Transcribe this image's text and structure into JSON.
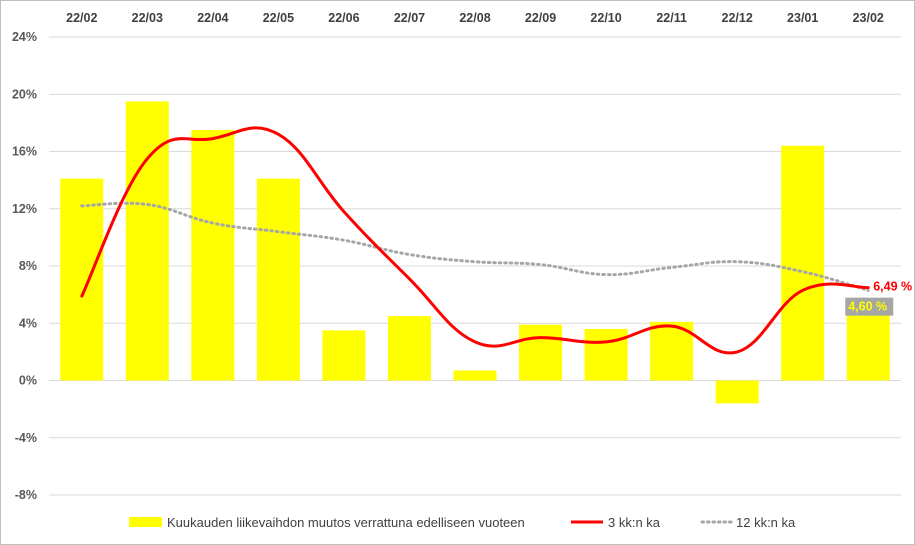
{
  "chart_data": {
    "type": "bar",
    "categories": [
      "22/02",
      "22/03",
      "22/04",
      "22/05",
      "22/06",
      "22/07",
      "22/08",
      "22/09",
      "22/10",
      "22/11",
      "22/12",
      "23/01",
      "23/02"
    ],
    "yticks": [
      "24%",
      "20%",
      "16%",
      "12%",
      "8%",
      "4%",
      "0%",
      "-4%",
      "-8%"
    ],
    "ylim": [
      -8,
      24
    ],
    "grid": true,
    "legend_position": "bottom",
    "series": [
      {
        "name": "Kuukauden liikevaihdon muutos verrattuna edelliseen vuoteen",
        "kind": "bar",
        "color": "#ffff00",
        "values": [
          14.1,
          19.5,
          17.5,
          14.1,
          3.5,
          4.5,
          0.7,
          3.9,
          3.6,
          4.1,
          -1.6,
          16.4,
          4.6
        ]
      },
      {
        "name": "3 kk:n ka",
        "kind": "line",
        "color": "#ff0000",
        "values": [
          5.9,
          15.5,
          16.9,
          17.2,
          11.8,
          7.1,
          2.7,
          3.0,
          2.7,
          3.8,
          2.0,
          6.3,
          6.49
        ]
      },
      {
        "name": "12 kk:n ka",
        "kind": "line-dotted",
        "color": "#a6a6a6",
        "values": [
          12.2,
          12.3,
          11.0,
          10.4,
          9.8,
          8.8,
          8.3,
          8.1,
          7.4,
          7.9,
          8.3,
          7.6,
          6.3
        ]
      }
    ],
    "data_labels": {
      "line_last": "6,49 %",
      "bar_last": "4,60 %"
    }
  }
}
